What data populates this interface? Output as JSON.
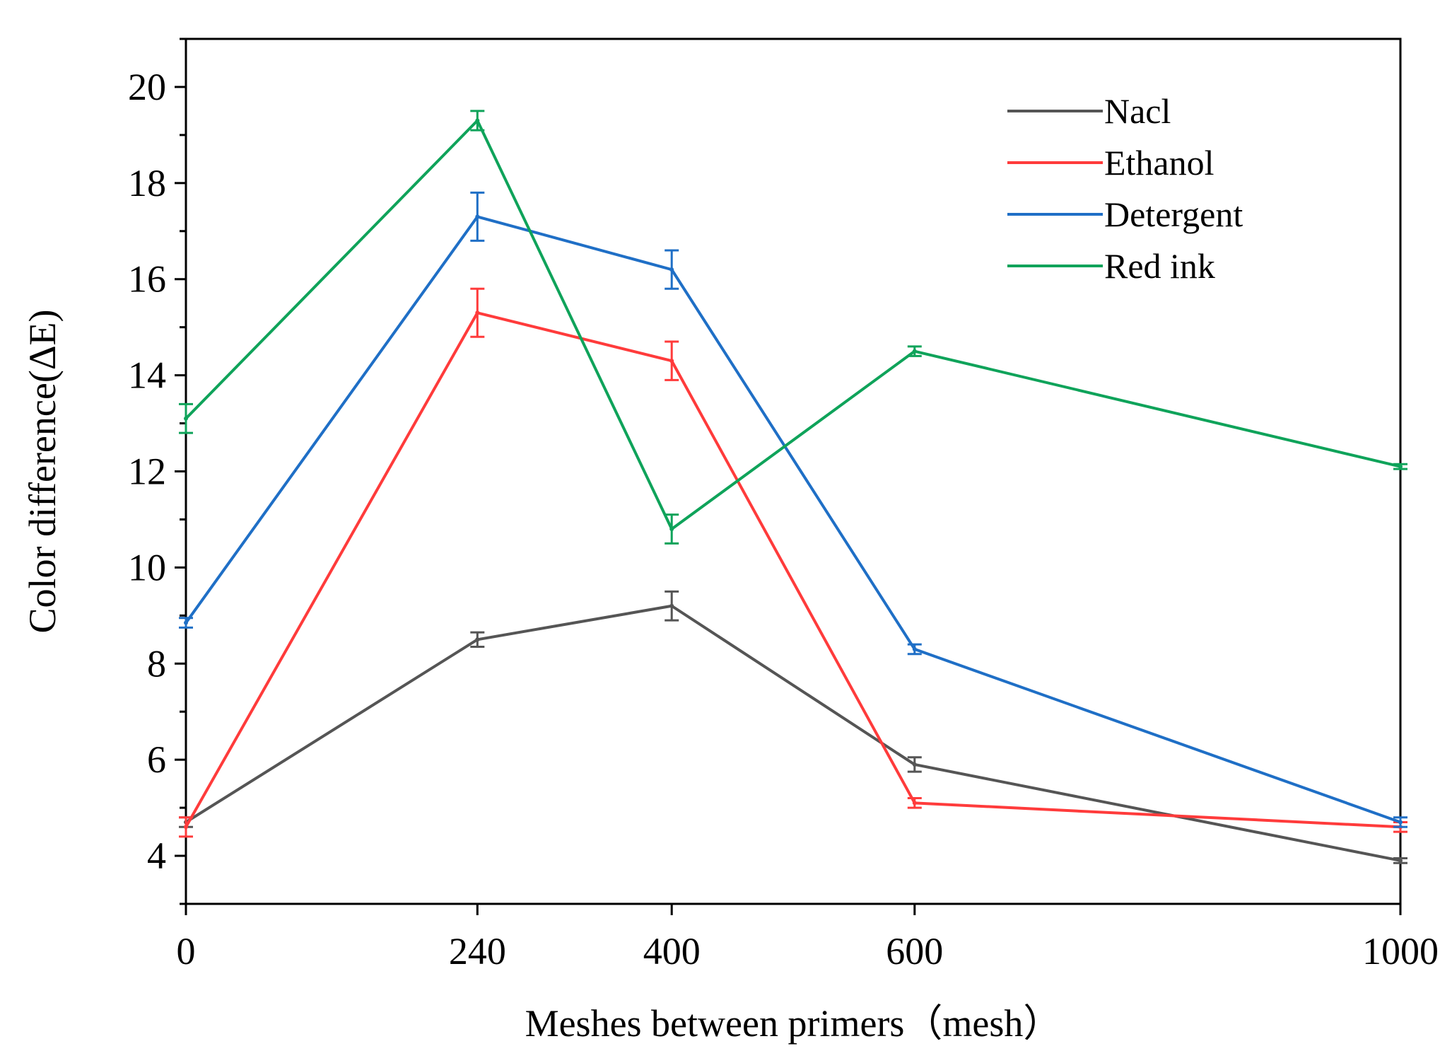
{
  "chart_data": {
    "type": "line",
    "title": "",
    "xlabel": "Meshes between primers（mesh）",
    "ylabel": "Color difference(ΔE)",
    "x": [
      0,
      240,
      400,
      600,
      1000
    ],
    "xticks": [
      "0",
      "240",
      "400",
      "600",
      "1000"
    ],
    "yticks": [
      "4",
      "6",
      "8",
      "10",
      "12",
      "14",
      "16",
      "18",
      "20"
    ],
    "xlim": [
      0,
      1000
    ],
    "ylim": [
      3,
      21
    ],
    "grid": false,
    "legend_position": "top-right",
    "series": [
      {
        "name": "Nacl",
        "color": "#555555",
        "values": [
          4.7,
          8.5,
          9.2,
          5.9,
          3.9
        ],
        "errors": [
          0.1,
          0.15,
          0.3,
          0.15,
          0.05
        ]
      },
      {
        "name": "Ethanol",
        "color": "#ff3b3b",
        "values": [
          4.6,
          15.3,
          14.3,
          5.1,
          4.6
        ],
        "errors": [
          0.2,
          0.5,
          0.4,
          0.1,
          0.1
        ]
      },
      {
        "name": "Detergent",
        "color": "#1f6fc6",
        "values": [
          8.85,
          17.3,
          16.2,
          8.3,
          4.7
        ],
        "errors": [
          0.1,
          0.5,
          0.4,
          0.1,
          0.1
        ]
      },
      {
        "name": "Red ink",
        "color": "#0fa35a",
        "values": [
          13.1,
          19.3,
          10.8,
          14.5,
          12.1
        ],
        "errors": [
          0.3,
          0.2,
          0.3,
          0.1,
          0.05
        ]
      }
    ]
  }
}
